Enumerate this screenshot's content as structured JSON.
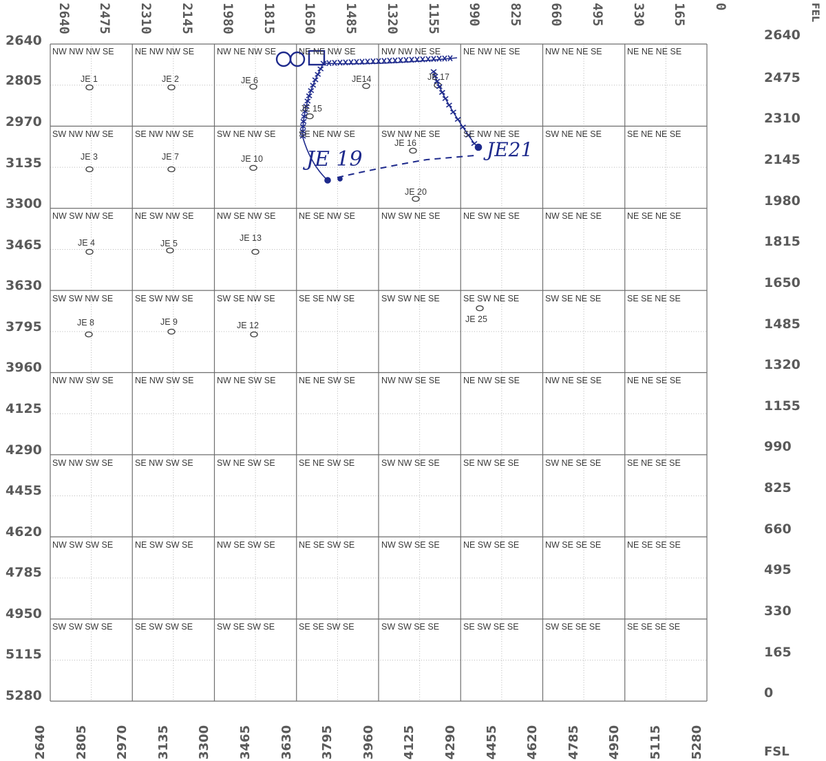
{
  "map": {
    "top_ticks": [
      "2640",
      "2475",
      "2310",
      "2145",
      "1980",
      "1815",
      "1650",
      "1485",
      "1320",
      "1155",
      "990",
      "825",
      "660",
      "495",
      "330",
      "165",
      "0"
    ],
    "bottom_ticks": [
      "2640",
      "2805",
      "2970",
      "3135",
      "3300",
      "3465",
      "3630",
      "3795",
      "3960",
      "4125",
      "4290",
      "4455",
      "4620",
      "4785",
      "4950",
      "5115",
      "5280"
    ],
    "left_ticks": [
      "2640",
      "2805",
      "2970",
      "3135",
      "3300",
      "3465",
      "3630",
      "3795",
      "3960",
      "4125",
      "4290",
      "4455",
      "4620",
      "4785",
      "4950",
      "5115",
      "5280"
    ],
    "right_ticks": [
      "2640",
      "2475",
      "2310",
      "2145",
      "1980",
      "1815",
      "1650",
      "1485",
      "1320",
      "1155",
      "990",
      "825",
      "660",
      "495",
      "330",
      "165",
      "0"
    ],
    "fel_label": "FEL",
    "fsl_label": "FSL",
    "grid_labels": [
      [
        "NW NW NW SE",
        "NE NW NW SE",
        "NW NE NW SE",
        "NE NE NW SE",
        "NW NW NE SE",
        "NE NW NE SE",
        "NW NE NE SE",
        "NE NE NE SE"
      ],
      [
        "SW NW NW SE",
        "SE NW NW SE",
        "SW NE NW SE",
        "SE NE NW SE",
        "SW NW NE SE",
        "SE NW NE SE",
        "SW NE NE SE",
        "SE NE NE SE"
      ],
      [
        "NW SW NW SE",
        "NE SW NW SE",
        "NW SE NW SE",
        "NE SE NW SE",
        "NW SW NE SE",
        "NE SW NE SE",
        "NW SE NE SE",
        "NE SE NE SE"
      ],
      [
        "SW SW NW SE",
        "SE SW NW SE",
        "SW SE NW SE",
        "SE SE NW SE",
        "SW SW NE SE",
        "SE SW NE SE",
        "SW SE NE SE",
        "SE SE NE SE"
      ],
      [
        "NW NW SW SE",
        "NE NW SW SE",
        "NW NE SW SE",
        "NE NE SW SE",
        "NW NW SE SE",
        "NE NW SE SE",
        "NW NE SE SE",
        "NE NE SE SE"
      ],
      [
        "SW NW SW SE",
        "SE NW SW SE",
        "SW NE SW SE",
        "SE NE SW SE",
        "SW NW SE SE",
        "SE NW SE SE",
        "SW NE SE SE",
        "SE NE SE SE"
      ],
      [
        "NW SW SW SE",
        "NE SW SW SE",
        "NW SE SW SE",
        "NE SE SW SE",
        "NW SW SE SE",
        "NE SW SE SE",
        "NW SE SE SE",
        "NE SE SE SE"
      ],
      [
        "SW SW SW SE",
        "SE SW SW SE",
        "SW SE SW SE",
        "SE SE SW SE",
        "SW SW SE SE",
        "SE SW SE SE",
        "SW SE SE SE",
        "SE SE SE SE"
      ]
    ],
    "wells": [
      {
        "label": "JE 1"
      },
      {
        "label": "JE 2"
      },
      {
        "label": "JE 6"
      },
      {
        "label": "JE14"
      },
      {
        "label": "JE 17"
      },
      {
        "label": "JE 15"
      },
      {
        "label": "JE 16"
      },
      {
        "label": "JE 3"
      },
      {
        "label": "JE 7"
      },
      {
        "label": "JE 10"
      },
      {
        "label": "JE 20"
      },
      {
        "label": "JE 4"
      },
      {
        "label": "JE 5"
      },
      {
        "label": "JE 13"
      },
      {
        "label": "JE 8"
      },
      {
        "label": "JE 9"
      },
      {
        "label": "JE 12"
      },
      {
        "label": "JE 25"
      }
    ],
    "handwritten": {
      "je19": "JE 19",
      "je21": "JE21"
    },
    "colors": {
      "ink": "#1e2a8c",
      "grid": "#777777",
      "dotted": "#b0b0b0",
      "axis_text": "#5a5a5a"
    }
  }
}
